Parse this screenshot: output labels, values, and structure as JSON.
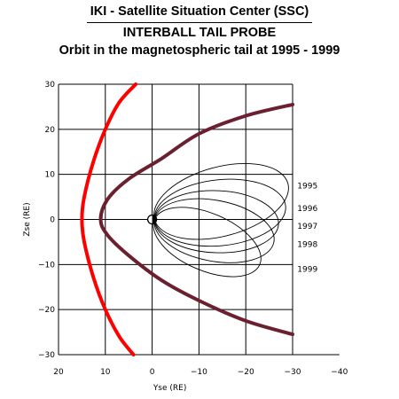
{
  "header": {
    "line1": "IKI - Satellite Situation Center (SSC)",
    "line2": "INTERBALL TAIL PROBE",
    "line3": "Orbit in the magnetospheric tail at 1995 - 1999"
  },
  "chart_data": {
    "type": "line",
    "xlabel": "Yse (RE)",
    "ylabel": "Zse (RE)",
    "xlim": [
      20,
      -40
    ],
    "ylim": [
      -30,
      30
    ],
    "x_ticks": [
      20,
      10,
      0,
      -10,
      -20,
      -30,
      -40
    ],
    "y_ticks": [
      30,
      20,
      10,
      0,
      -10,
      -20,
      -30
    ],
    "grid": true,
    "colors": {
      "bow_shock": "#ff0000",
      "magnetopause": "#6b2030",
      "orbit": "#000000",
      "grid": "#000000"
    },
    "bow_shock": {
      "name": "",
      "x": [
        4,
        7,
        10,
        12.5,
        14.5,
        15,
        14.5,
        12.5,
        10,
        7,
        3.5
      ],
      "y": [
        -30,
        -26,
        -20,
        -13,
        -5,
        0,
        5,
        13,
        20,
        26,
        30
      ]
    },
    "magnetopause": {
      "name": "",
      "x": [
        -30,
        -20,
        -10,
        -2,
        5,
        9.5,
        11,
        9.5,
        5,
        -2,
        -10,
        -20,
        -30
      ],
      "y": [
        -25.5,
        -22.5,
        -18,
        -13.5,
        -8,
        -3.5,
        0,
        4.5,
        9,
        13.5,
        19,
        23,
        25.5
      ]
    },
    "earth": {
      "x": 0,
      "y": 0
    },
    "orbits": [
      {
        "year": "1995",
        "apogee": [
          -29,
          8
        ],
        "perigee": [
          -0.5,
          0
        ]
      },
      {
        "year": "1996",
        "apogee": [
          -28.5,
          3
        ],
        "perigee": [
          -0.5,
          0
        ]
      },
      {
        "year": "1997",
        "apogee": [
          -27,
          -1
        ],
        "perigee": [
          -0.5,
          0
        ]
      },
      {
        "year": "1998",
        "apogee": [
          -26,
          -5
        ],
        "perigee": [
          -0.5,
          0
        ]
      },
      {
        "year": "1999",
        "apogee": [
          -23,
          -10
        ],
        "perigee": [
          -0.5,
          0
        ]
      }
    ],
    "orbit_labels": [
      {
        "text": "1995",
        "x": -31,
        "y": 7.5
      },
      {
        "text": "1996",
        "x": -31,
        "y": 2.5
      },
      {
        "text": "1997",
        "x": -31,
        "y": -1.5
      },
      {
        "text": "1998",
        "x": -31,
        "y": -5.5
      },
      {
        "text": "1999",
        "x": -31,
        "y": -11
      }
    ]
  }
}
